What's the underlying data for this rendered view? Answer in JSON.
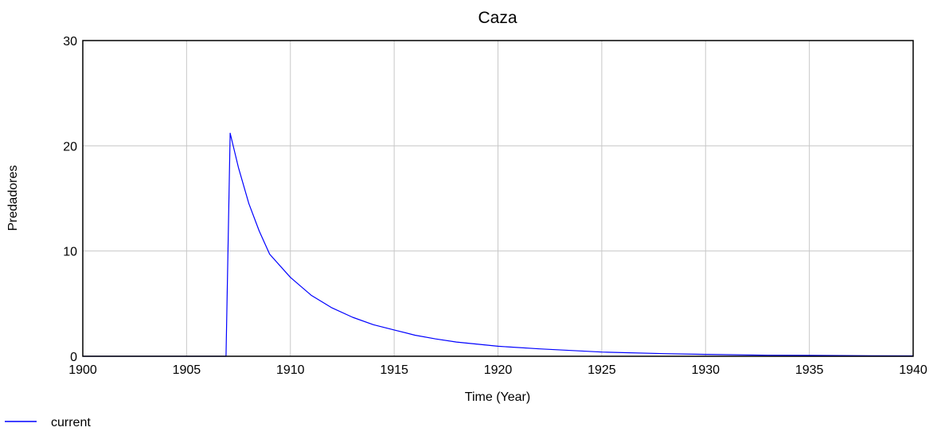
{
  "chart_data": {
    "type": "line",
    "title": "Caza",
    "xlabel": "Time (Year)",
    "ylabel": "Predadores",
    "xlim": [
      1900,
      1940
    ],
    "ylim": [
      0,
      30
    ],
    "x_ticks": [
      "1900",
      "1905",
      "1910",
      "1915",
      "1920",
      "1925",
      "1930",
      "1935",
      "1940"
    ],
    "y_ticks": [
      "0",
      "10",
      "20",
      "30"
    ],
    "grid": true,
    "legend_position": "bottom-left",
    "series": [
      {
        "name": "current",
        "color": "#0000ff",
        "x": [
          1900,
          1906.9,
          1907.1,
          1907.5,
          1908,
          1908.5,
          1909,
          1910,
          1911,
          1912,
          1913,
          1914,
          1915,
          1916,
          1917,
          1918,
          1920,
          1922,
          1925,
          1928,
          1930,
          1933,
          1935,
          1938,
          1940
        ],
        "y": [
          0,
          0,
          21.2,
          17.9,
          14.5,
          11.9,
          9.7,
          7.5,
          5.8,
          4.6,
          3.7,
          3.0,
          2.5,
          2.0,
          1.65,
          1.35,
          0.95,
          0.7,
          0.4,
          0.25,
          0.18,
          0.1,
          0.08,
          0.05,
          0.04
        ]
      }
    ]
  }
}
